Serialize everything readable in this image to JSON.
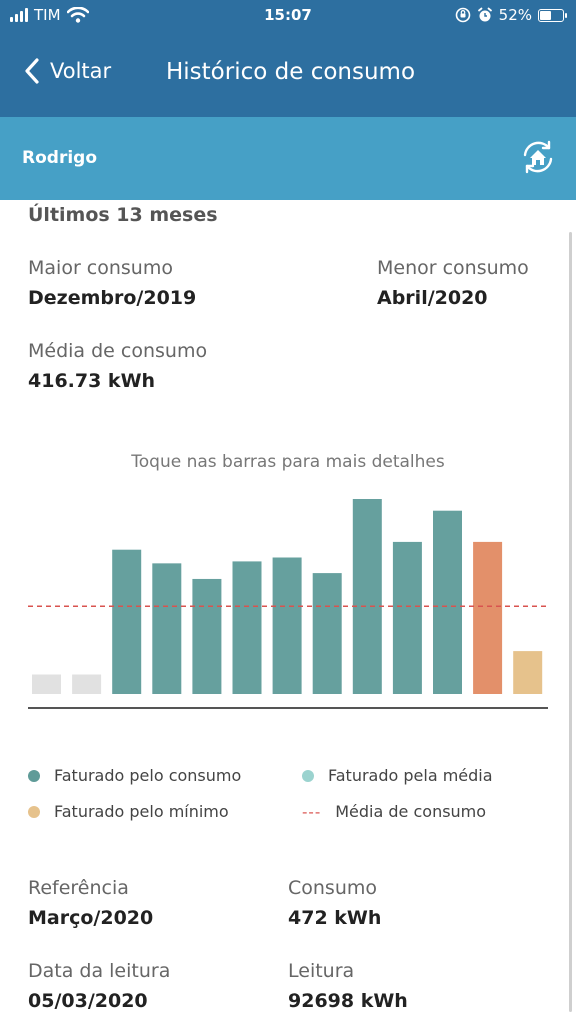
{
  "status": {
    "carrier": "TIM",
    "time": "15:07",
    "battery": "52%"
  },
  "nav": {
    "back_label": "Voltar",
    "title": "Histórico de consumo"
  },
  "sub": {
    "user": "Rodrigo"
  },
  "summary": {
    "title": "Últimos 13 meses",
    "max_label": "Maior consumo",
    "max_value": "Dezembro/2019",
    "min_label": "Menor consumo",
    "min_value": "Abril/2020",
    "avg_label": "Média de consumo",
    "avg_value": "416.73 kWh"
  },
  "chart_hint": "Toque nas barras para mais detalhes",
  "chart_data": {
    "type": "bar",
    "values": [
      0.1,
      0.1,
      0.74,
      0.67,
      0.59,
      0.68,
      0.7,
      0.62,
      1.0,
      0.78,
      0.94,
      0.78,
      0.22
    ],
    "colors": [
      "#e1e1e1",
      "#e1e1e1",
      "#66a09e",
      "#66a09e",
      "#66a09e",
      "#66a09e",
      "#66a09e",
      "#66a09e",
      "#66a09e",
      "#66a09e",
      "#66a09e",
      "#e3906a",
      "#e6c28c"
    ],
    "average": 0.45,
    "average_color": "#d9534f"
  },
  "legend": [
    {
      "label": "Faturado pelo consumo",
      "color": "#5f9b98"
    },
    {
      "label": "Faturado pela média",
      "color": "#9bd3cf"
    },
    {
      "label": "Faturado pelo mínimo",
      "color": "#e6c28c"
    },
    {
      "label": "Média de consumo",
      "marker": "---",
      "color": "#d9534f"
    }
  ],
  "detail": {
    "ref_label": "Referência",
    "ref_value": "Março/2020",
    "cons_label": "Consumo",
    "cons_value": "472 kWh",
    "date_label": "Data da leitura",
    "date_value": "05/03/2020",
    "read_label": "Leitura",
    "read_value": "92698 kWh"
  }
}
